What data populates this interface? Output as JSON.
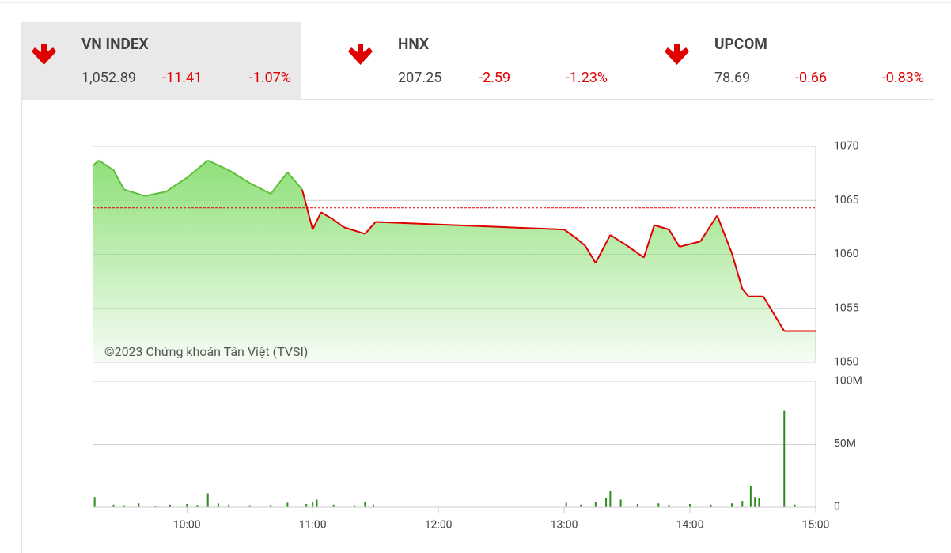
{
  "indices": [
    {
      "name": "VN INDEX",
      "value": "1,052.89",
      "change": "-11.41",
      "pct": "-1.07%"
    },
    {
      "name": "HNX",
      "value": "207.25",
      "change": "-2.59",
      "pct": "-1.23%"
    },
    {
      "name": "UPCOM",
      "value": "78.69",
      "change": "-0.66",
      "pct": "-0.83%"
    }
  ],
  "chart_data": [
    {
      "type": "line",
      "annotation": "©2023 Chứng khoán Tân Việt (TVSI)",
      "x": [
        "09:15",
        "09:18",
        "09:25",
        "09:30",
        "09:40",
        "09:50",
        "10:00",
        "10:10",
        "10:20",
        "10:30",
        "10:40",
        "10:48",
        "10:55",
        "11:00",
        "11:04",
        "11:10",
        "11:15",
        "11:25",
        "11:30",
        "13:00",
        "13:05",
        "13:10",
        "13:15",
        "13:22",
        "13:30",
        "13:38",
        "13:43",
        "13:50",
        "13:55",
        "14:05",
        "14:13",
        "14:20",
        "14:25",
        "14:28",
        "14:30",
        "14:35",
        "14:45",
        "15:00"
      ],
      "values": [
        1068.2,
        1068.7,
        1067.8,
        1066,
        1065.4,
        1065.8,
        1067.1,
        1068.7,
        1067.8,
        1066.6,
        1065.6,
        1067.6,
        1066,
        1062.3,
        1063.9,
        1063.2,
        1062.5,
        1061.9,
        1063,
        1062.3,
        1061.6,
        1060.8,
        1059.2,
        1061.8,
        1060.8,
        1059.7,
        1062.7,
        1062.3,
        1060.7,
        1061.2,
        1063.6,
        1060.1,
        1056.8,
        1056.1,
        1056.1,
        1056.1,
        1052.89,
        1052.89
      ],
      "reference": 1064.3,
      "up_color": "#5cbf3a",
      "down_color": "#e00000",
      "area_color": "#8fe07a",
      "xlim": [
        "09:15",
        "15:00"
      ],
      "ylim": [
        1050,
        1070
      ],
      "yticks": [
        1050,
        1055,
        1060,
        1065,
        1070
      ],
      "grid": true
    },
    {
      "type": "bar",
      "color": "#2e8b1e",
      "x": [
        "09:16",
        "09:25",
        "09:30",
        "09:37",
        "09:45",
        "09:52",
        "10:00",
        "10:05",
        "10:10",
        "10:15",
        "10:20",
        "10:30",
        "10:40",
        "10:48",
        "10:57",
        "11:00",
        "11:02",
        "11:10",
        "11:20",
        "11:25",
        "11:29",
        "13:01",
        "13:08",
        "13:15",
        "13:20",
        "13:22",
        "13:27",
        "13:35",
        "13:45",
        "13:50",
        "14:00",
        "14:10",
        "14:20",
        "14:25",
        "14:29",
        "14:31",
        "14:33",
        "14:45",
        "14:50"
      ],
      "values": [
        8000000,
        2000000,
        1500000,
        3000000,
        1200000,
        2000000,
        2500000,
        1800000,
        11000000,
        3000000,
        2000000,
        1500000,
        1800000,
        3500000,
        2500000,
        4000000,
        6000000,
        2000000,
        1500000,
        4000000,
        2000000,
        3500000,
        2000000,
        4000000,
        7000000,
        13000000,
        6000000,
        2500000,
        3000000,
        2000000,
        2500000,
        2000000,
        3000000,
        5000000,
        17000000,
        8000000,
        7000000,
        77000000,
        2000000
      ],
      "xlim": [
        "09:15",
        "15:00"
      ],
      "xticks": [
        "10:00",
        "11:00",
        "12:00",
        "13:00",
        "14:00",
        "15:00"
      ],
      "ylim": [
        0,
        100000000
      ],
      "yticks": [
        0,
        {
          "value": 50000000,
          "label": "50M"
        },
        {
          "value": 100000000,
          "label": "100M"
        }
      ],
      "grid": true
    }
  ]
}
